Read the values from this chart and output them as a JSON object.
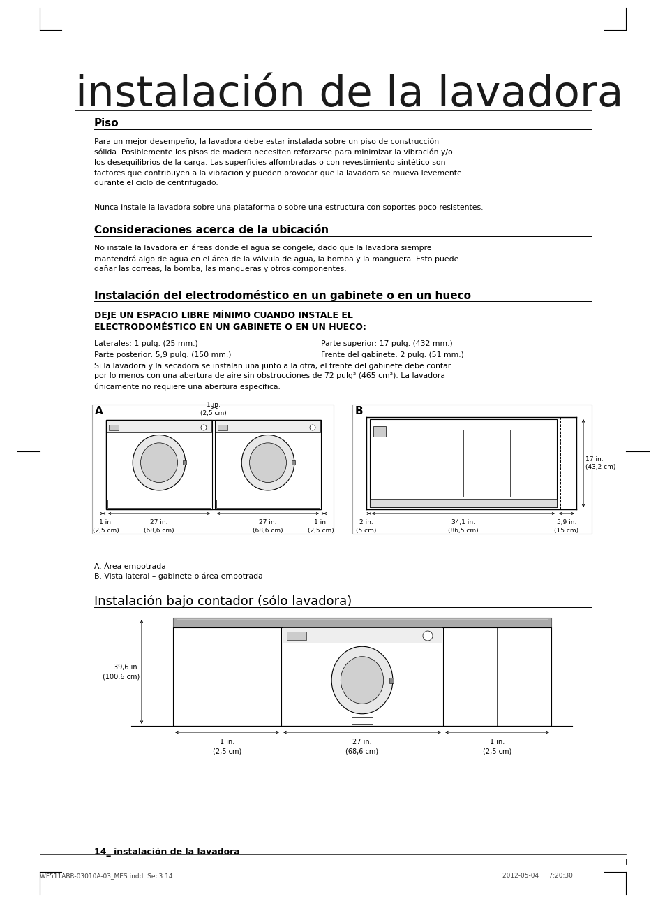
{
  "bg_color": "#ffffff",
  "title_large": "instalación de la lavadora",
  "section1_title": "Piso",
  "section1_body": "Para un mejor desempeño, la lavadora debe estar instalada sobre un piso de construcción\nsólida. Posiblemente los pisos de madera necesiten reforzarse para minimizar la vibración y/o\nlos desequilibrios de la carga. Las superficies alfombradas o con revestimiento sintético son\nfactores que contribuyen a la vibración y pueden provocar que la lavadora se mueva levemente\ndurante el ciclo de centrifugado.",
  "section1_body2": "Nunca instale la lavadora sobre una plataforma o sobre una estructura con soportes poco resistentes.",
  "section2_title": "Consideraciones acerca de la ubicación",
  "section2_body": "No instale la lavadora en áreas donde el agua se congele, dado que la lavadora siempre\nmantendrá algo de agua en el área de la válvula de agua, la bomba y la manguera. Esto puede\ndañar las correas, la bomba, las mangueras y otros componentes.",
  "section3_title": "Instalación del electrodoméstico en un gabinete o en un hueco",
  "section3_bold": "DEJE UN ESPACIO LIBRE MÍNIMO CUANDO INSTALE EL\nELECTRODOMÉSTICO EN UN GABINETE O EN UN HUECO:",
  "section3_specs": [
    [
      "Laterales: 1 pulg. (25 mm.)",
      "Parte superior: 17 pulg. (432 mm.)"
    ],
    [
      "Parte posterior: 5,9 pulg. (150 mm.)",
      "Frente del gabinete: 2 pulg. (51 mm.)"
    ]
  ],
  "section3_note": "Si la lavadora y la secadora se instalan una junto a la otra, el frente del gabinete debe contar\npor lo menos con una abertura de aire sin obstrucciones de 72 pulg² (465 cm²). La lavadora\núnicamente no requiere una abertura específica.",
  "section4_title": "Instalación bajo contador (sólo lavadora)",
  "diagram_A_note": "A. Área empotrada",
  "diagram_B_note": "B. Vista lateral – gabinete o área empotrada",
  "footer_left": "14_ instalación de la lavadora",
  "footer_file": "WF511ABR-03010A-03_MES.indd  Sec3:14",
  "footer_date": "2012-05-04",
  "footer_time": "7:20:30"
}
